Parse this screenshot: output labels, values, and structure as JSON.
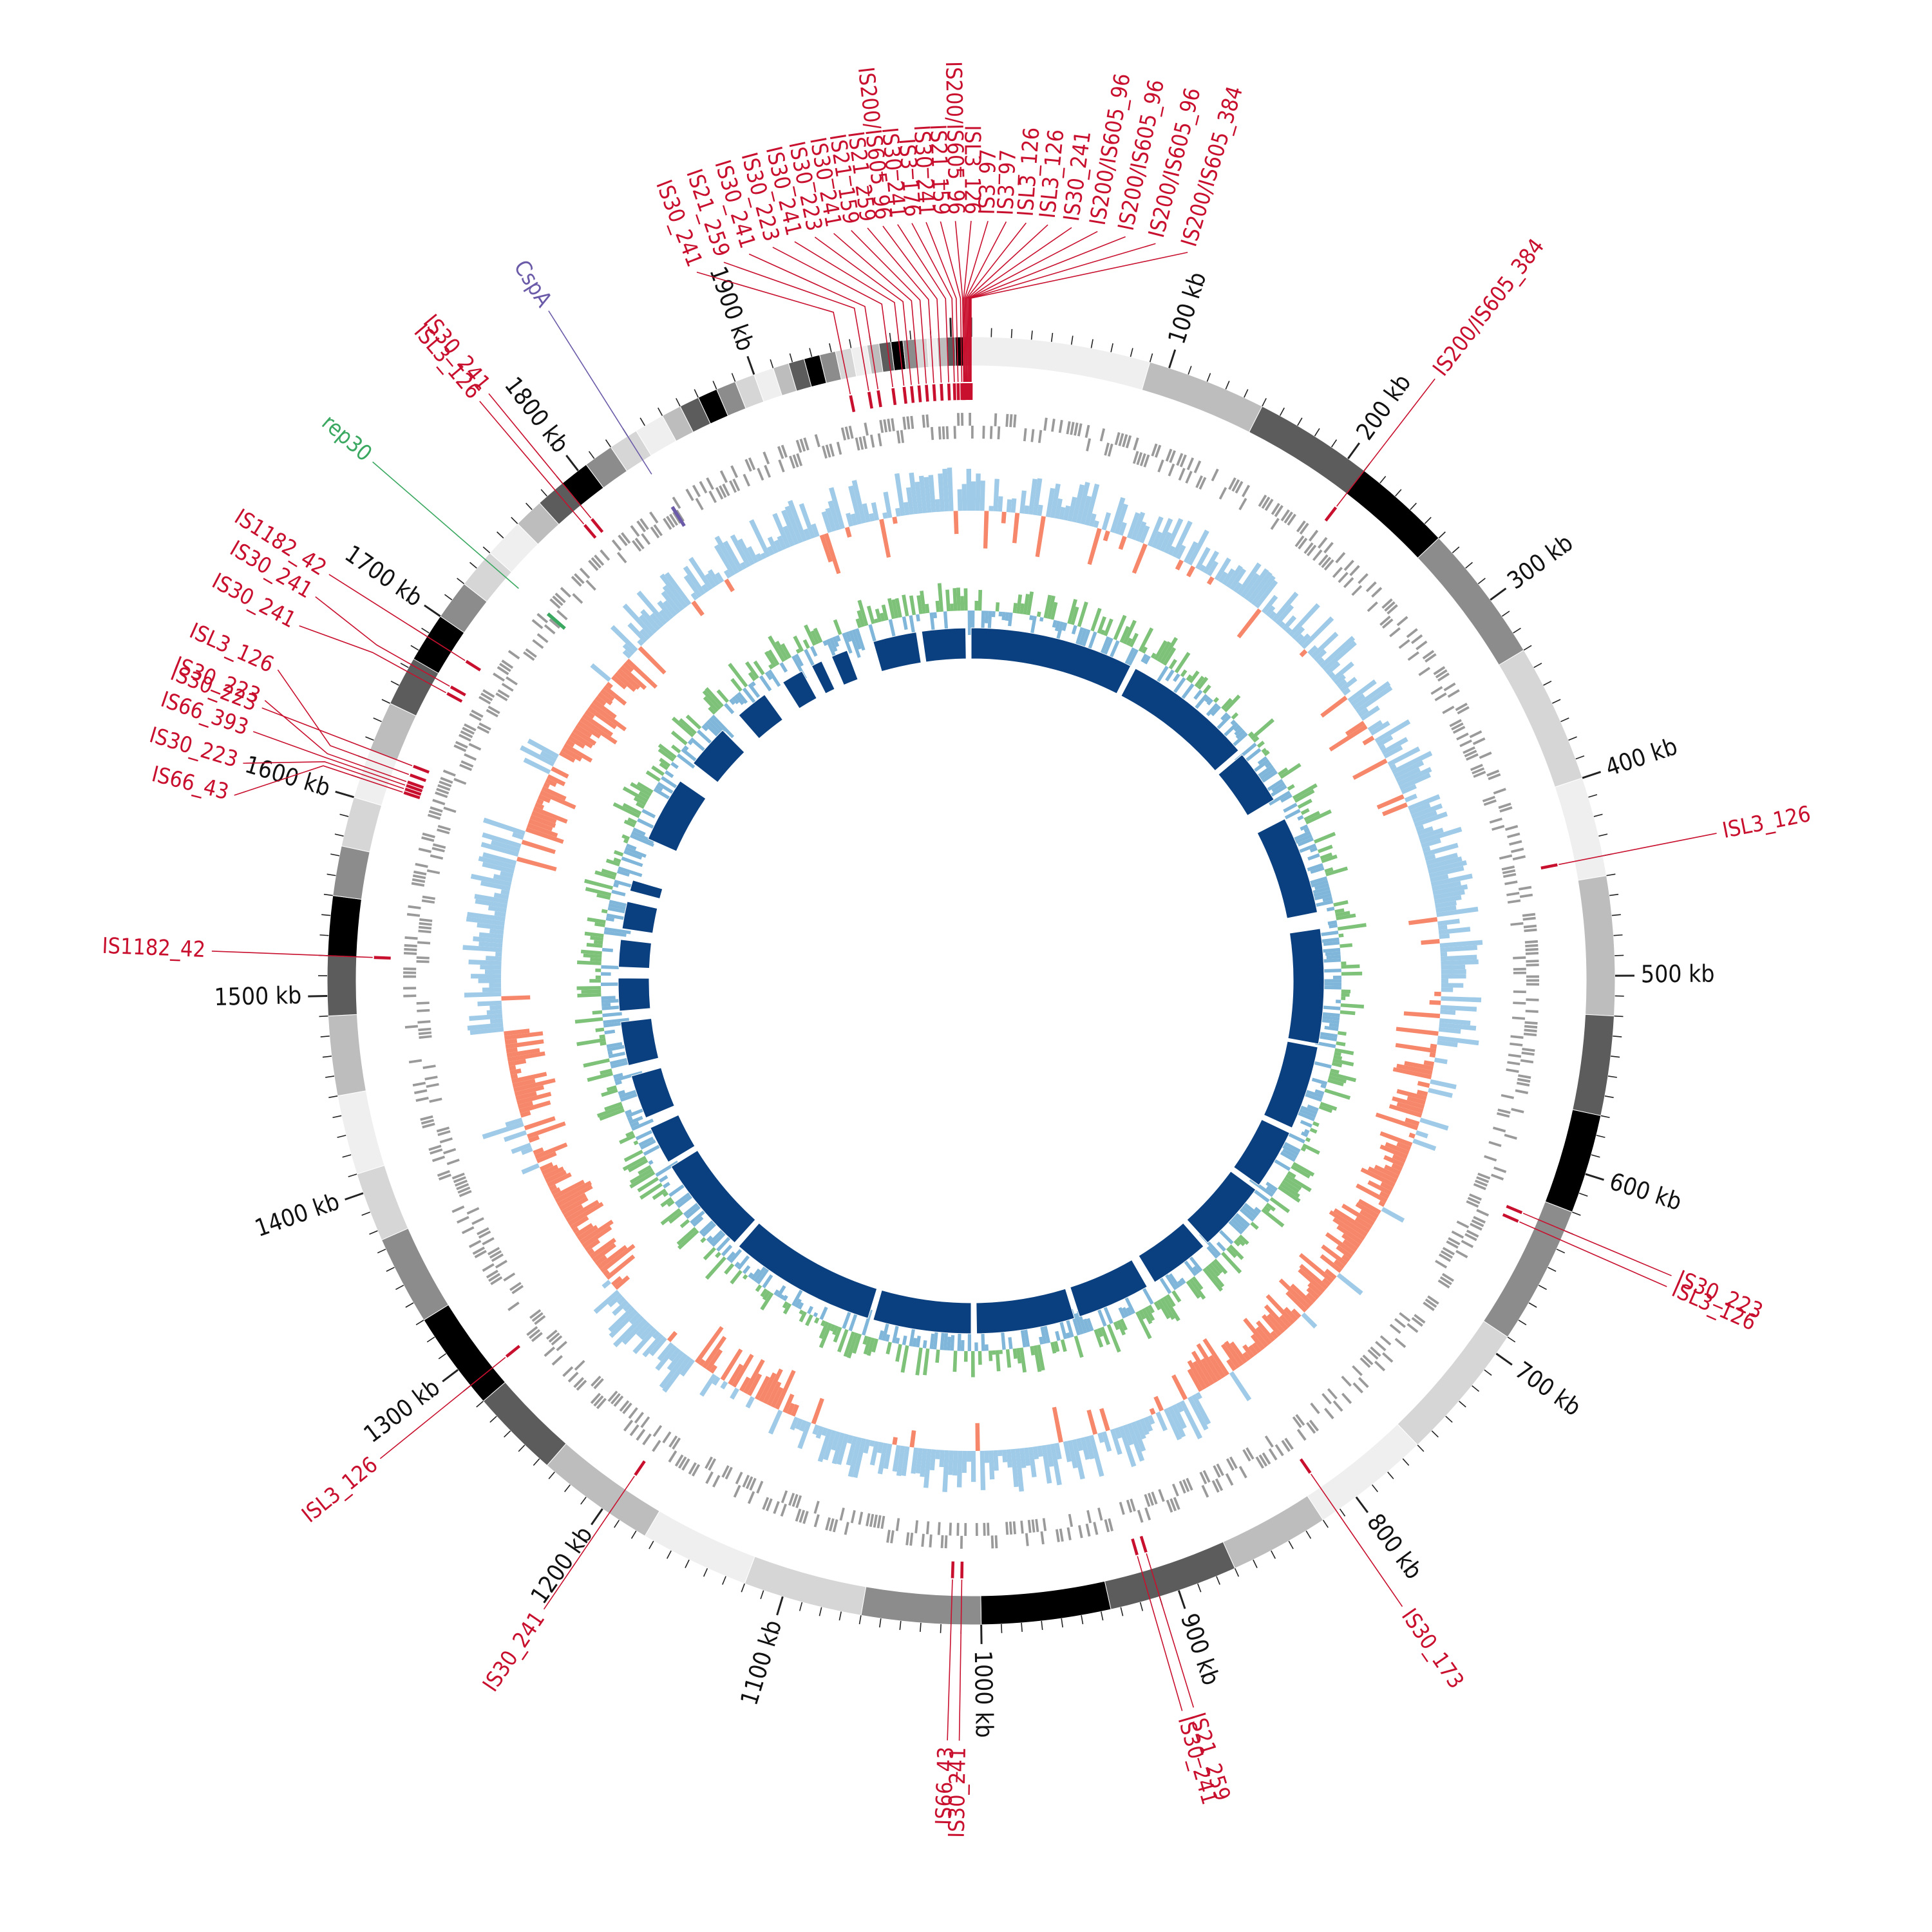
{
  "genome": {
    "length_kb": 2010
  },
  "colors": {
    "is_element": "#c8102e",
    "gc_skew_pos": "#9fcbe8",
    "gc_skew_neg": "#f7876a",
    "gc_content_pos": "#7ec27a",
    "gc_content_neg": "#7fb6d9",
    "gene_track": "#9a9a9a",
    "inner_blocks": "#0b4080",
    "cspA": "#6a5aa8",
    "rep30": "#3aa860"
  },
  "ticks": [
    {
      "kb": 100,
      "label": "100 kb"
    },
    {
      "kb": 200,
      "label": "200 kb"
    },
    {
      "kb": 300,
      "label": "300 kb"
    },
    {
      "kb": 400,
      "label": "400 kb"
    },
    {
      "kb": 500,
      "label": "500 kb"
    },
    {
      "kb": 600,
      "label": "600 kb"
    },
    {
      "kb": 700,
      "label": "700 kb"
    },
    {
      "kb": 800,
      "label": "800 kb"
    },
    {
      "kb": 900,
      "label": "900 kb"
    },
    {
      "kb": 1000,
      "label": "1000 kb"
    },
    {
      "kb": 1100,
      "label": "1100 kb"
    },
    {
      "kb": 1200,
      "label": "1200 kb"
    },
    {
      "kb": 1300,
      "label": "1300 kb"
    },
    {
      "kb": 1400,
      "label": "1400 kb"
    },
    {
      "kb": 1500,
      "label": "1500 kb"
    },
    {
      "kb": 1600,
      "label": "1600 kb"
    },
    {
      "kb": 1700,
      "label": "1700 kb"
    },
    {
      "kb": 1800,
      "label": "1800 kb"
    },
    {
      "kb": 1900,
      "label": "1900 kb"
    }
  ],
  "contig_shades": [
    "#efefef",
    "#bdbdbd",
    "#5c5c5c",
    "#000000",
    "#8c8c8c",
    "#d6d6d6"
  ],
  "is_elements": [
    {
      "kb": 1945,
      "label": "IS30_241"
    },
    {
      "kb": 1955,
      "label": "IS21_259"
    },
    {
      "kb": 1960,
      "label": "IS30_241"
    },
    {
      "kb": 1968,
      "label": "IS30_223"
    },
    {
      "kb": 1974,
      "label": "IS30_241"
    },
    {
      "kb": 1978,
      "label": "IS30_223"
    },
    {
      "kb": 1982,
      "label": "IS30_241"
    },
    {
      "kb": 1986,
      "label": "IS21_159"
    },
    {
      "kb": 1990,
      "label": "IS21_259"
    },
    {
      "kb": 1994,
      "label": "IS200/IS605_96"
    },
    {
      "kb": 1998,
      "label": "IS30_241"
    },
    {
      "kb": 2001,
      "label": "IS3_176"
    },
    {
      "kb": 2003,
      "label": "IS30_241"
    },
    {
      "kb": 2005,
      "label": "IS21_159"
    },
    {
      "kb": 2006,
      "label": "IS200/IS605_96"
    },
    {
      "kb": 2006.5,
      "label": "ISL3_126"
    },
    {
      "kb": 2007,
      "label": "IS3_97"
    },
    {
      "kb": 2007.5,
      "label": "IS3_97"
    },
    {
      "kb": 2008,
      "label": "ISL3_126"
    },
    {
      "kb": 2008.5,
      "label": "ISL3_126"
    },
    {
      "kb": 2009,
      "label": "IS30_241"
    },
    {
      "kb": 2009.3,
      "label": "IS200/IS605_96"
    },
    {
      "kb": 2009.6,
      "label": "IS200/IS605_96"
    },
    {
      "kb": 2009.8,
      "label": "IS200/IS605_96"
    },
    {
      "kb": 2010,
      "label": "IS200/IS605_384"
    },
    {
      "kb": 210,
      "label": "IS200/IS605_384"
    },
    {
      "kb": 440,
      "label": "ISL3_126"
    },
    {
      "kb": 630,
      "label": "IS30_223"
    },
    {
      "kb": 635,
      "label": "ISL3_126"
    },
    {
      "kb": 812,
      "label": "IS30_173"
    },
    {
      "kb": 910,
      "label": "IS21_259"
    },
    {
      "kb": 915,
      "label": "IS30_241"
    },
    {
      "kb": 1010,
      "label": "IS30_241"
    },
    {
      "kb": 1015,
      "label": "IS66_43"
    },
    {
      "kb": 1196,
      "label": "IS30_241"
    },
    {
      "kb": 1290,
      "label": "ISL3_126"
    },
    {
      "kb": 1520,
      "label": "IS1182_42"
    },
    {
      "kb": 1610,
      "label": "IS66_43"
    },
    {
      "kb": 1612,
      "label": "IS30_223"
    },
    {
      "kb": 1614,
      "label": "IS66_393"
    },
    {
      "kb": 1616,
      "label": "IS30_223"
    },
    {
      "kb": 1620,
      "label": "ISL3_126"
    },
    {
      "kb": 1625,
      "label": "IS30_223"
    },
    {
      "kb": 1668,
      "label": "IS30_241"
    },
    {
      "kb": 1672,
      "label": "IS30_241"
    },
    {
      "kb": 1688,
      "label": "IS1182_42"
    },
    {
      "kb": 1785,
      "label": "ISL3_126"
    },
    {
      "kb": 1790,
      "label": "IS30_241"
    }
  ],
  "features": [
    {
      "kb": 1830,
      "label": "CspA",
      "color_key": "cspA"
    },
    {
      "kb": 1736,
      "label": "rep30",
      "color_key": "rep30"
    }
  ]
}
